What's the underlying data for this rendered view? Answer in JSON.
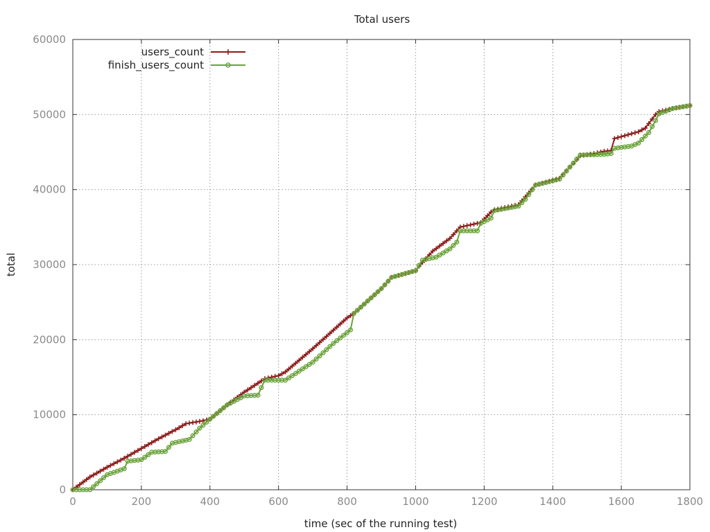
{
  "chart_data": {
    "type": "line",
    "title": "Total users",
    "xlabel": "time (sec of the running test)",
    "ylabel": "total",
    "xlim": [
      0,
      1800
    ],
    "ylim": [
      0,
      60000
    ],
    "xticks": [
      0,
      200,
      400,
      600,
      800,
      1000,
      1200,
      1400,
      1600,
      1800
    ],
    "yticks": [
      0,
      10000,
      20000,
      30000,
      40000,
      50000,
      60000
    ],
    "grid": true,
    "legend_position": "top-left",
    "series": [
      {
        "name": "users_count",
        "color": "#8b1a1a",
        "marker": "plus",
        "x": [
          0,
          50,
          100,
          150,
          200,
          250,
          300,
          330,
          380,
          400,
          450,
          500,
          560,
          600,
          620,
          700,
          800,
          820,
          900,
          930,
          1000,
          1010,
          1050,
          1100,
          1130,
          1190,
          1220,
          1230,
          1300,
          1310,
          1350,
          1420,
          1450,
          1480,
          1520,
          1550,
          1570,
          1580,
          1650,
          1670,
          1700,
          1710,
          1750,
          1800
        ],
        "y": [
          0,
          1700,
          3000,
          4200,
          5500,
          6800,
          8000,
          8800,
          9200,
          9400,
          11300,
          13000,
          14800,
          15200,
          15700,
          18800,
          22900,
          23500,
          26800,
          28300,
          29200,
          29800,
          31800,
          33500,
          35000,
          35600,
          37000,
          37300,
          38000,
          38500,
          40600,
          41500,
          43000,
          44500,
          44800,
          45100,
          45200,
          46800,
          47700,
          48200,
          50000,
          50400,
          50800,
          51200
        ]
      },
      {
        "name": "finish_users_count",
        "color": "#6aa33a",
        "marker": "circle",
        "x": [
          0,
          40,
          50,
          100,
          150,
          160,
          200,
          230,
          270,
          290,
          340,
          370,
          400,
          450,
          500,
          540,
          560,
          620,
          700,
          760,
          810,
          820,
          900,
          930,
          1000,
          1020,
          1060,
          1100,
          1120,
          1130,
          1180,
          1190,
          1220,
          1230,
          1300,
          1320,
          1350,
          1420,
          1450,
          1480,
          1550,
          1570,
          1580,
          1630,
          1650,
          1680,
          1700,
          1710,
          1750,
          1800
        ],
        "y": [
          0,
          0,
          0,
          2000,
          2800,
          3800,
          4000,
          5000,
          5100,
          6200,
          6700,
          8200,
          9400,
          11300,
          12500,
          12600,
          14600,
          14600,
          17000,
          19500,
          21300,
          23500,
          26800,
          28300,
          29200,
          30600,
          31000,
          32100,
          33000,
          34500,
          34500,
          35500,
          36200,
          37200,
          37800,
          38700,
          40600,
          41400,
          43000,
          44600,
          44700,
          44800,
          45500,
          45800,
          46200,
          47600,
          49200,
          50100,
          50800,
          51200
        ]
      }
    ]
  }
}
